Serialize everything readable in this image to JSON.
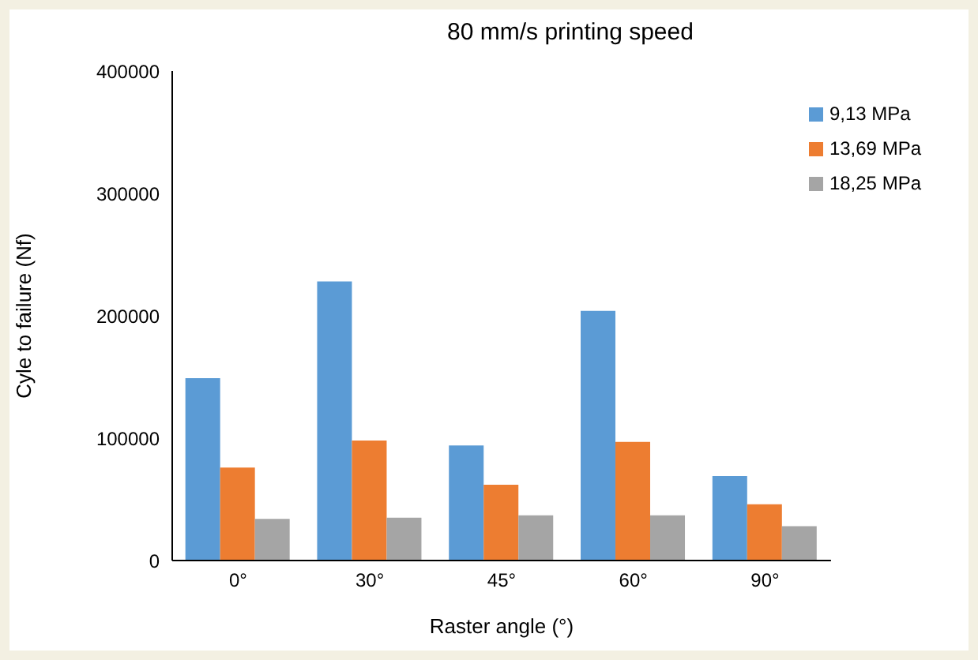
{
  "chart_data": {
    "type": "bar",
    "title": "80 mm/s printing speed",
    "xlabel": "Raster angle (°)",
    "ylabel": "Cyle to failure (Nf)",
    "categories": [
      "0°",
      "30°",
      "45°",
      "60°",
      "90°"
    ],
    "series": [
      {
        "name": "9,13 MPa",
        "color": "#5b9bd5",
        "values": [
          149000,
          228000,
          94000,
          204000,
          69000
        ]
      },
      {
        "name": "13,69 MPa",
        "color": "#ed7d31",
        "values": [
          76000,
          98000,
          62000,
          97000,
          46000
        ]
      },
      {
        "name": "18,25 MPa",
        "color": "#a5a5a5",
        "values": [
          34000,
          35000,
          37000,
          37000,
          28000
        ]
      }
    ],
    "ylim": [
      0,
      400000
    ],
    "yticks": [
      0,
      100000,
      200000,
      300000,
      400000
    ],
    "grid": false,
    "legend": "top right"
  }
}
